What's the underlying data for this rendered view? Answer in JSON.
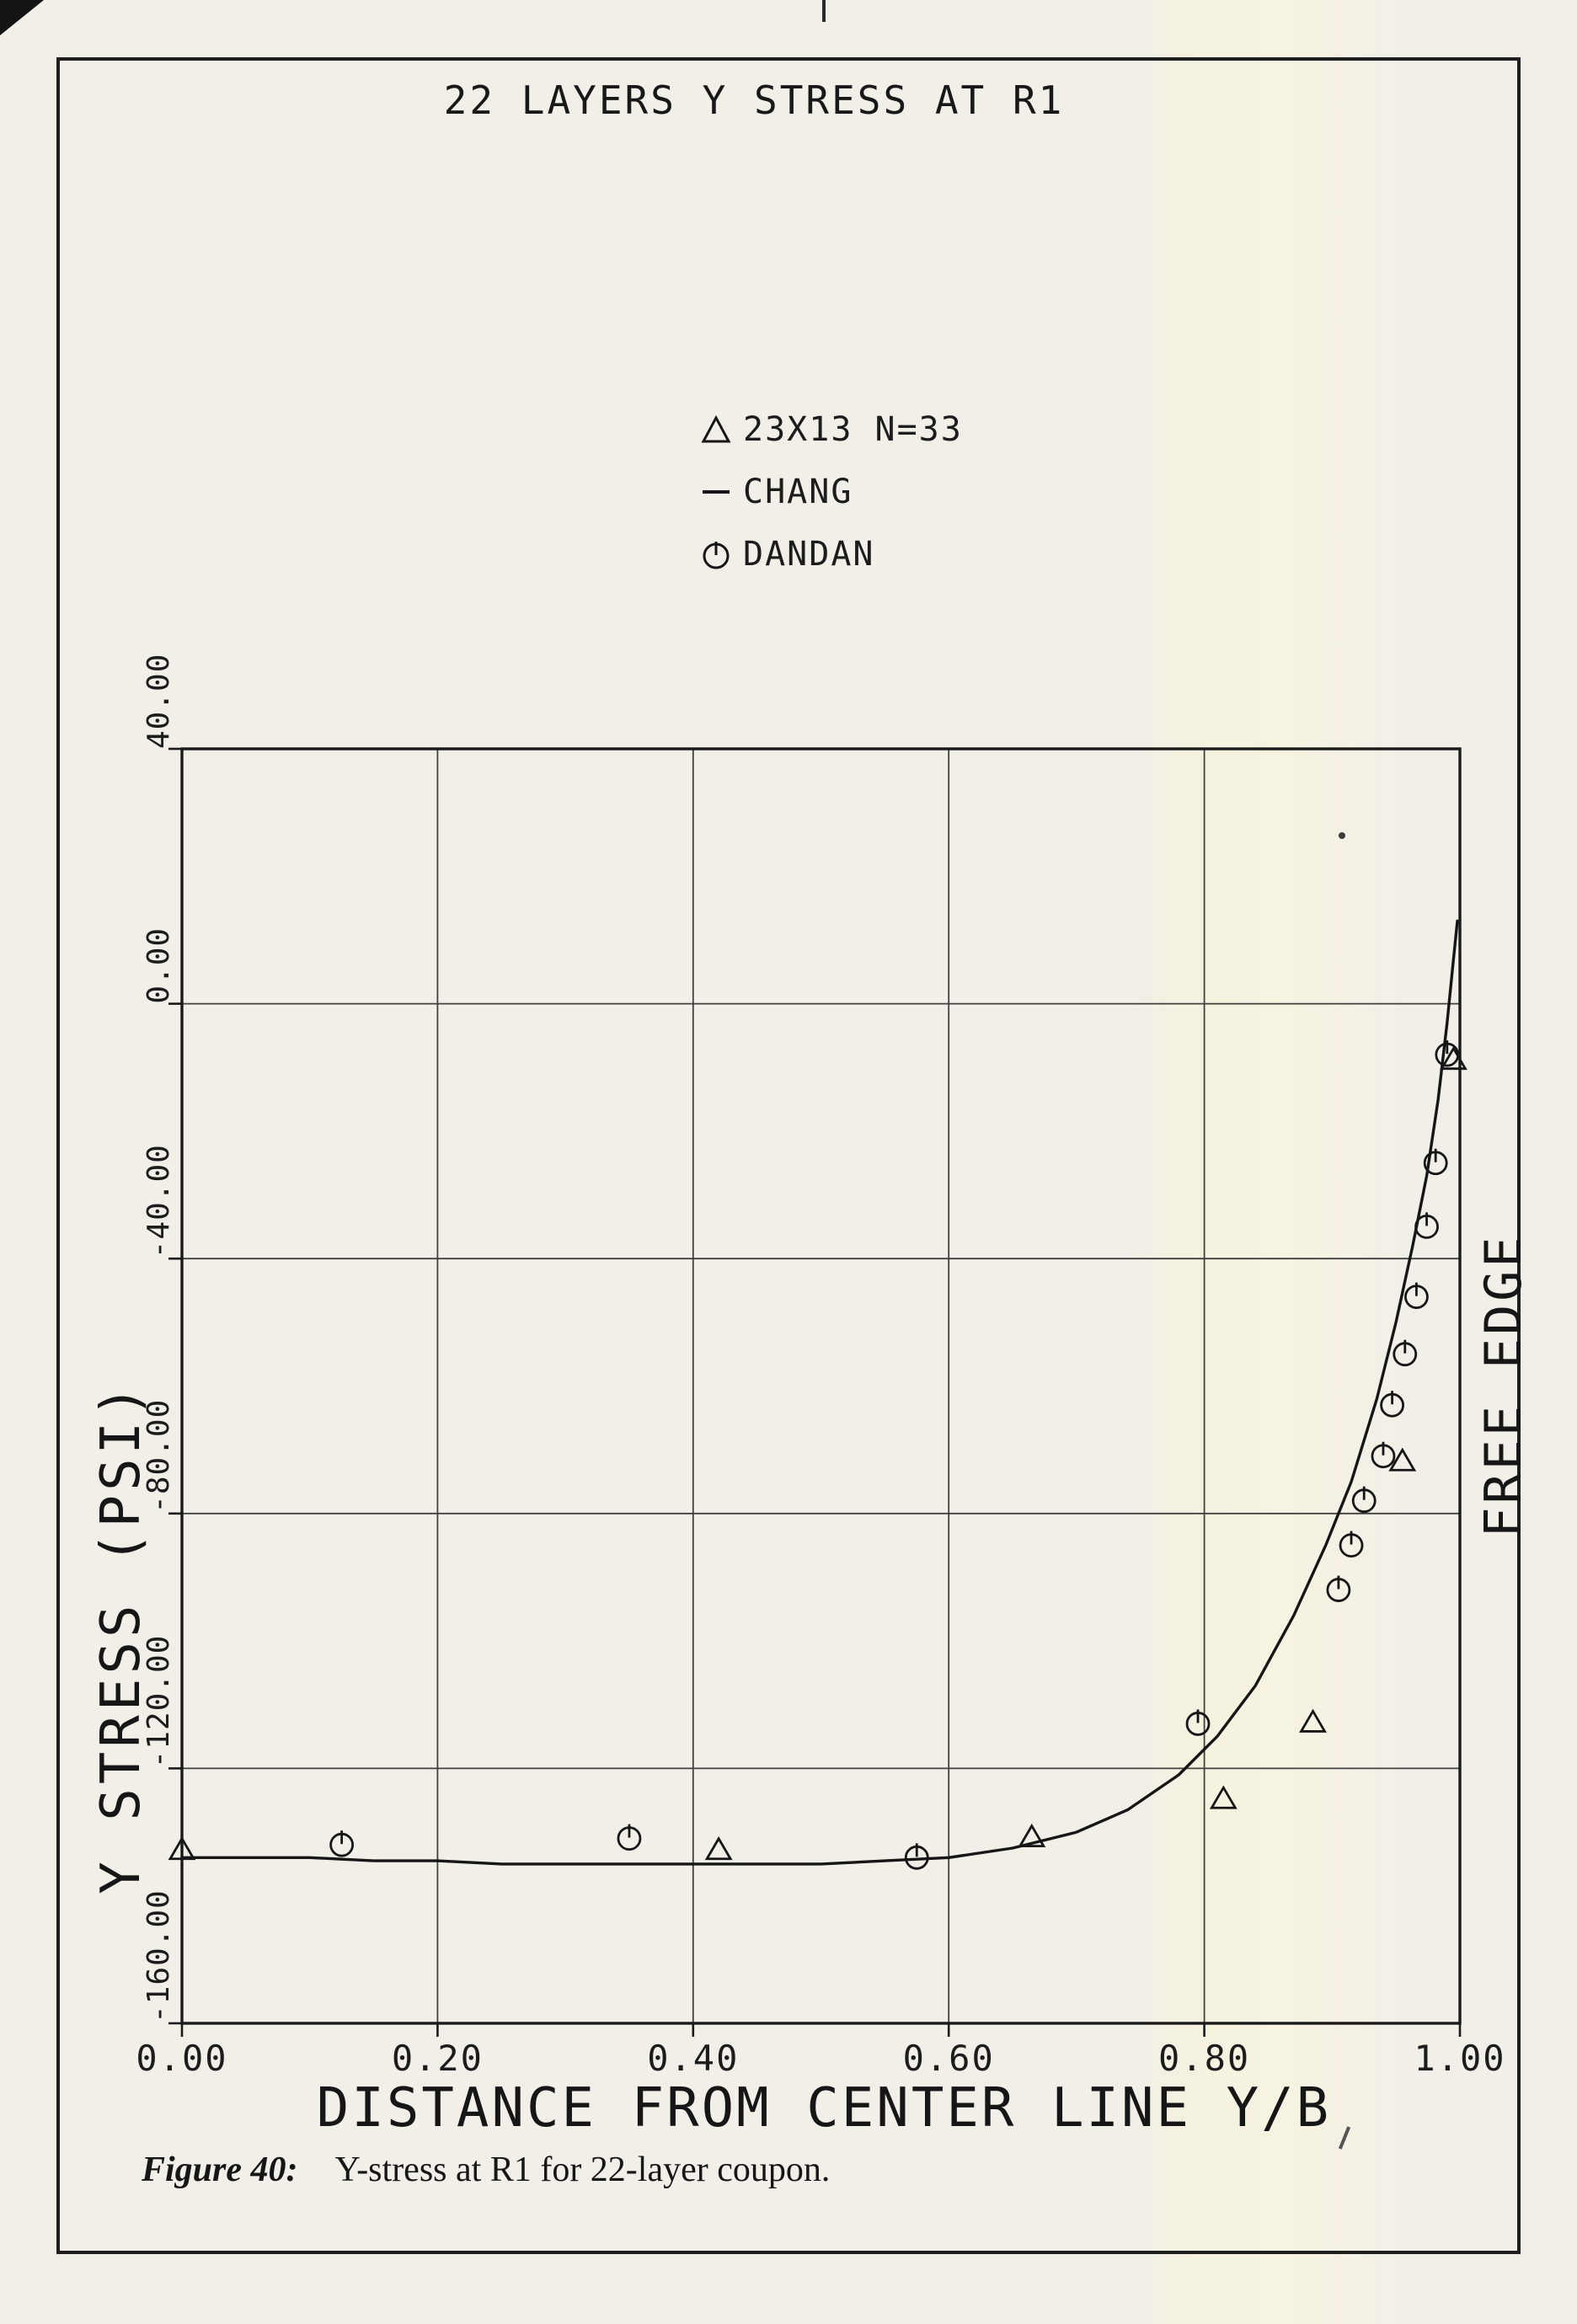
{
  "figure": {
    "caption_label": "Figure 40:",
    "caption_text": "Y-stress at R1 for 22-layer coupon."
  },
  "chart_data": {
    "type": "line",
    "title": "22 LAYERS Y STRESS AT R1",
    "xlabel": "DISTANCE FROM CENTER LINE Y/B",
    "ylabel": "Y STRESS (PSI)",
    "right_edge_label": "FREE EDGE",
    "xlim": [
      0.0,
      1.0
    ],
    "ylim": [
      -160.0,
      40.0
    ],
    "grid": true,
    "legend_position": "upper center",
    "x_ticks": [
      0.0,
      0.2,
      0.4,
      0.6,
      0.8,
      1.0
    ],
    "x_tick_labels": [
      "0.00",
      "0.20",
      "0.40",
      "0.60",
      "0.80",
      "1.00"
    ],
    "y_ticks": [
      40,
      0,
      -40,
      -80,
      -120,
      -160
    ],
    "y_tick_labels": [
      "40.00",
      "0.00",
      "-40.00",
      "-80.00",
      "-120.00",
      "-160.00"
    ],
    "legend": [
      {
        "marker": "triangle",
        "label": "23X13 N=33"
      },
      {
        "marker": "line",
        "label": "CHANG"
      },
      {
        "marker": "circle",
        "label": "DANDAN"
      }
    ],
    "series": [
      {
        "name": "CHANG",
        "type": "line",
        "points": [
          [
            0.0,
            -134
          ],
          [
            0.05,
            -134
          ],
          [
            0.1,
            -134
          ],
          [
            0.15,
            -134.5
          ],
          [
            0.2,
            -134.5
          ],
          [
            0.25,
            -135
          ],
          [
            0.3,
            -135
          ],
          [
            0.35,
            -135
          ],
          [
            0.4,
            -135
          ],
          [
            0.45,
            -135
          ],
          [
            0.5,
            -135
          ],
          [
            0.55,
            -134.5
          ],
          [
            0.6,
            -134
          ],
          [
            0.65,
            -132.5
          ],
          [
            0.7,
            -130
          ],
          [
            0.74,
            -126.5
          ],
          [
            0.78,
            -121
          ],
          [
            0.81,
            -115
          ],
          [
            0.84,
            -107
          ],
          [
            0.87,
            -96
          ],
          [
            0.895,
            -85
          ],
          [
            0.915,
            -75
          ],
          [
            0.935,
            -62
          ],
          [
            0.95,
            -50
          ],
          [
            0.963,
            -38
          ],
          [
            0.974,
            -27
          ],
          [
            0.983,
            -15
          ],
          [
            0.99,
            -3
          ],
          [
            0.995,
            7
          ],
          [
            0.998,
            13
          ]
        ]
      },
      {
        "name": "23X13 N=33",
        "type": "scatter",
        "marker": "triangle",
        "points": [
          [
            0.0,
            -133
          ],
          [
            0.42,
            -133
          ],
          [
            0.665,
            -131
          ],
          [
            0.815,
            -125
          ],
          [
            0.885,
            -113
          ],
          [
            0.955,
            -72
          ],
          [
            0.995,
            -9
          ]
        ]
      },
      {
        "name": "DANDAN",
        "type": "scatter",
        "marker": "circle",
        "points": [
          [
            0.125,
            -132
          ],
          [
            0.35,
            -131
          ],
          [
            0.575,
            -134
          ],
          [
            0.795,
            -113
          ],
          [
            0.905,
            -92
          ],
          [
            0.915,
            -85
          ],
          [
            0.925,
            -78
          ],
          [
            0.94,
            -71
          ],
          [
            0.947,
            -63
          ],
          [
            0.957,
            -55
          ],
          [
            0.966,
            -46
          ],
          [
            0.974,
            -35
          ],
          [
            0.981,
            -25
          ],
          [
            0.99,
            -8
          ]
        ]
      }
    ]
  }
}
